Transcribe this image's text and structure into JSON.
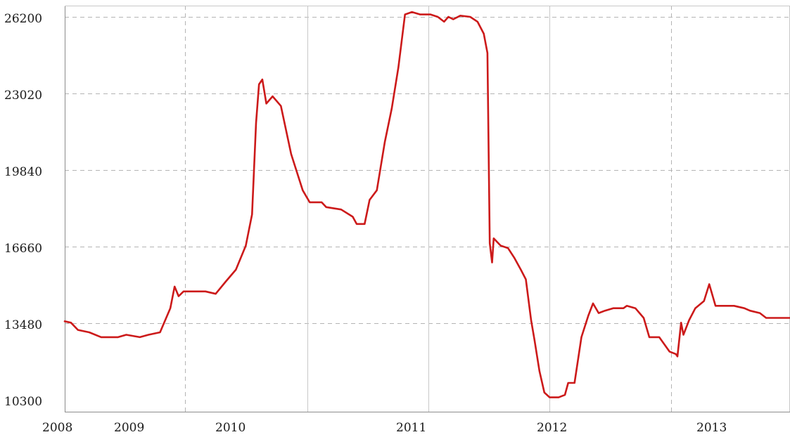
{
  "chart_data": {
    "type": "line",
    "title": "",
    "xlabel": "",
    "ylabel": "",
    "grid": true,
    "legend": "none",
    "line_color": "#cc1a1a",
    "ylim": [
      10300,
      26400
    ],
    "y_ticks": [
      {
        "value": 10300,
        "label": "10300"
      },
      {
        "value": 13480,
        "label": "13480"
      },
      {
        "value": 16660,
        "label": "16660"
      },
      {
        "value": 19840,
        "label": "19840"
      },
      {
        "value": 23020,
        "label": "23020"
      },
      {
        "value": 26200,
        "label": "26200"
      }
    ],
    "xlim": [
      "2008-01-01",
      "2013-12-31"
    ],
    "x_ticks": [
      {
        "value": "2008-01-01",
        "label": "2008"
      },
      {
        "value": "2009-01-01",
        "label": "2009"
      },
      {
        "value": "2010-01-01",
        "label": "2010"
      },
      {
        "value": "2011-01-01",
        "label": "2011"
      },
      {
        "value": "2012-01-01",
        "label": "2012"
      },
      {
        "value": "2013-01-01",
        "label": "2013"
      }
    ],
    "x_gridlines": [
      "2008-01-01",
      "2009-01-01",
      "2010-01-01",
      "2011-01-01",
      "2012-01-01",
      "2013-01-01",
      "2013-12-31"
    ],
    "series": [
      {
        "points": [
          [
            "2008-01-01",
            13560
          ],
          [
            "2008-01-20",
            13500
          ],
          [
            "2008-02-10",
            13200
          ],
          [
            "2008-03-15",
            13100
          ],
          [
            "2008-04-20",
            12900
          ],
          [
            "2008-06-10",
            12900
          ],
          [
            "2008-07-05",
            13000
          ],
          [
            "2008-08-15",
            12900
          ],
          [
            "2008-09-10",
            13000
          ],
          [
            "2008-10-15",
            13100
          ],
          [
            "2008-11-15",
            14100
          ],
          [
            "2008-11-28",
            15000
          ],
          [
            "2008-12-10",
            14600
          ],
          [
            "2008-12-25",
            14800
          ],
          [
            "2009-01-20",
            14800
          ],
          [
            "2009-03-01",
            14800
          ],
          [
            "2009-04-01",
            14700
          ],
          [
            "2009-05-01",
            15200
          ],
          [
            "2009-06-01",
            15700
          ],
          [
            "2009-07-01",
            16700
          ],
          [
            "2009-07-20",
            18000
          ],
          [
            "2009-08-01",
            21800
          ],
          [
            "2009-08-10",
            23400
          ],
          [
            "2009-08-20",
            23600
          ],
          [
            "2009-09-01",
            22600
          ],
          [
            "2009-09-20",
            22900
          ],
          [
            "2009-10-15",
            22500
          ],
          [
            "2009-11-15",
            20500
          ],
          [
            "2009-12-20",
            19000
          ],
          [
            "2010-01-10",
            18500
          ],
          [
            "2010-02-15",
            18500
          ],
          [
            "2010-03-01",
            18300
          ],
          [
            "2010-04-15",
            18200
          ],
          [
            "2010-05-20",
            17900
          ],
          [
            "2010-06-01",
            17600
          ],
          [
            "2010-06-25",
            17600
          ],
          [
            "2010-07-10",
            18600
          ],
          [
            "2010-08-01",
            19000
          ],
          [
            "2010-08-25",
            21000
          ],
          [
            "2010-09-15",
            22400
          ],
          [
            "2010-10-05",
            24100
          ],
          [
            "2010-10-25",
            26300
          ],
          [
            "2010-11-15",
            26400
          ],
          [
            "2010-12-10",
            26300
          ],
          [
            "2011-01-10",
            26300
          ],
          [
            "2011-02-01",
            26200
          ],
          [
            "2011-02-20",
            26000
          ],
          [
            "2011-03-05",
            26200
          ],
          [
            "2011-03-20",
            26100
          ],
          [
            "2011-04-10",
            26250
          ],
          [
            "2011-05-10",
            26200
          ],
          [
            "2011-06-01",
            26000
          ],
          [
            "2011-06-20",
            25500
          ],
          [
            "2011-07-01",
            24700
          ],
          [
            "2011-07-08",
            16800
          ],
          [
            "2011-07-15",
            16000
          ],
          [
            "2011-07-20",
            17000
          ],
          [
            "2011-08-10",
            16700
          ],
          [
            "2011-09-01",
            16600
          ],
          [
            "2011-09-20",
            16200
          ],
          [
            "2011-10-10",
            15700
          ],
          [
            "2011-10-25",
            15300
          ],
          [
            "2011-11-10",
            13600
          ],
          [
            "2011-11-20",
            12800
          ],
          [
            "2011-12-05",
            11500
          ],
          [
            "2011-12-20",
            10600
          ],
          [
            "2012-01-05",
            10400
          ],
          [
            "2012-02-01",
            10400
          ],
          [
            "2012-02-20",
            10500
          ],
          [
            "2012-03-01",
            11000
          ],
          [
            "2012-03-20",
            11000
          ],
          [
            "2012-04-10",
            12900
          ],
          [
            "2012-05-01",
            13800
          ],
          [
            "2012-05-15",
            14300
          ],
          [
            "2012-06-01",
            13900
          ],
          [
            "2012-06-20",
            14000
          ],
          [
            "2012-07-15",
            14100
          ],
          [
            "2012-08-15",
            14100
          ],
          [
            "2012-08-25",
            14200
          ],
          [
            "2012-09-20",
            14100
          ],
          [
            "2012-10-15",
            13700
          ],
          [
            "2012-11-01",
            12900
          ],
          [
            "2012-11-15",
            12900
          ],
          [
            "2012-12-01",
            12900
          ],
          [
            "2013-01-01",
            12300
          ],
          [
            "2013-01-20",
            12200
          ],
          [
            "2013-01-25",
            12100
          ],
          [
            "2013-02-05",
            13500
          ],
          [
            "2013-02-12",
            13000
          ],
          [
            "2013-03-01",
            13600
          ],
          [
            "2013-03-20",
            14100
          ],
          [
            "2013-04-15",
            14400
          ],
          [
            "2013-05-01",
            15100
          ],
          [
            "2013-05-20",
            14200
          ],
          [
            "2013-06-15",
            14200
          ],
          [
            "2013-07-15",
            14200
          ],
          [
            "2013-08-15",
            14100
          ],
          [
            "2013-09-01",
            14000
          ],
          [
            "2013-10-01",
            13900
          ],
          [
            "2013-10-20",
            13700
          ],
          [
            "2013-11-15",
            13700
          ],
          [
            "2013-12-31",
            13700
          ]
        ]
      }
    ]
  }
}
